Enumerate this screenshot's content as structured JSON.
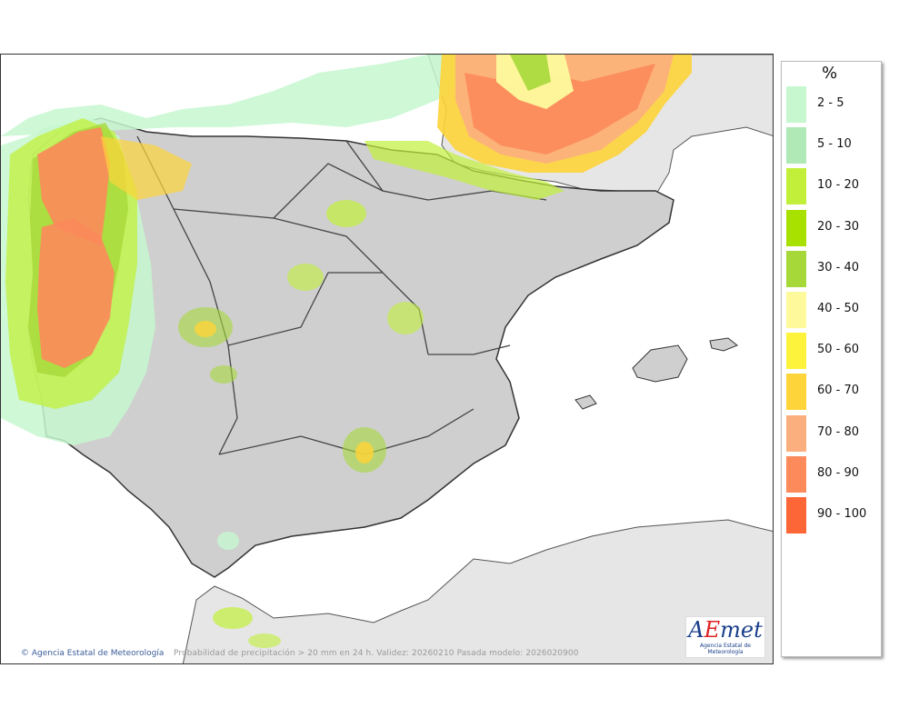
{
  "map": {
    "caption": "Probabilidad de precipitación > 20 mm en 24 h. Validez: 20260210 Pasada modelo: 2026020900",
    "credit": "Agencia Estatal de Meteorología",
    "logo_text": "AEmet",
    "logo_sub": "Agencia Estatal de Meteorología"
  },
  "legend": {
    "unit": "%",
    "items": [
      {
        "label": "2 - 5",
        "color": "#c6f7cf"
      },
      {
        "label": "5 - 10",
        "color": "#b0e8b6"
      },
      {
        "label": "10 - 20",
        "color": "#c2f03a"
      },
      {
        "label": "20 - 30",
        "color": "#a8e000"
      },
      {
        "label": "30 - 40",
        "color": "#a6d83a"
      },
      {
        "label": "40 - 50",
        "color": "#fefa9c"
      },
      {
        "label": "50 - 60",
        "color": "#fdf33c"
      },
      {
        "label": "60 - 70",
        "color": "#fdd43a"
      },
      {
        "label": "70 - 80",
        "color": "#fcaf7e"
      },
      {
        "label": "80 - 90",
        "color": "#fc8a5b"
      },
      {
        "label": "90 - 100",
        "color": "#fd6636"
      }
    ]
  }
}
